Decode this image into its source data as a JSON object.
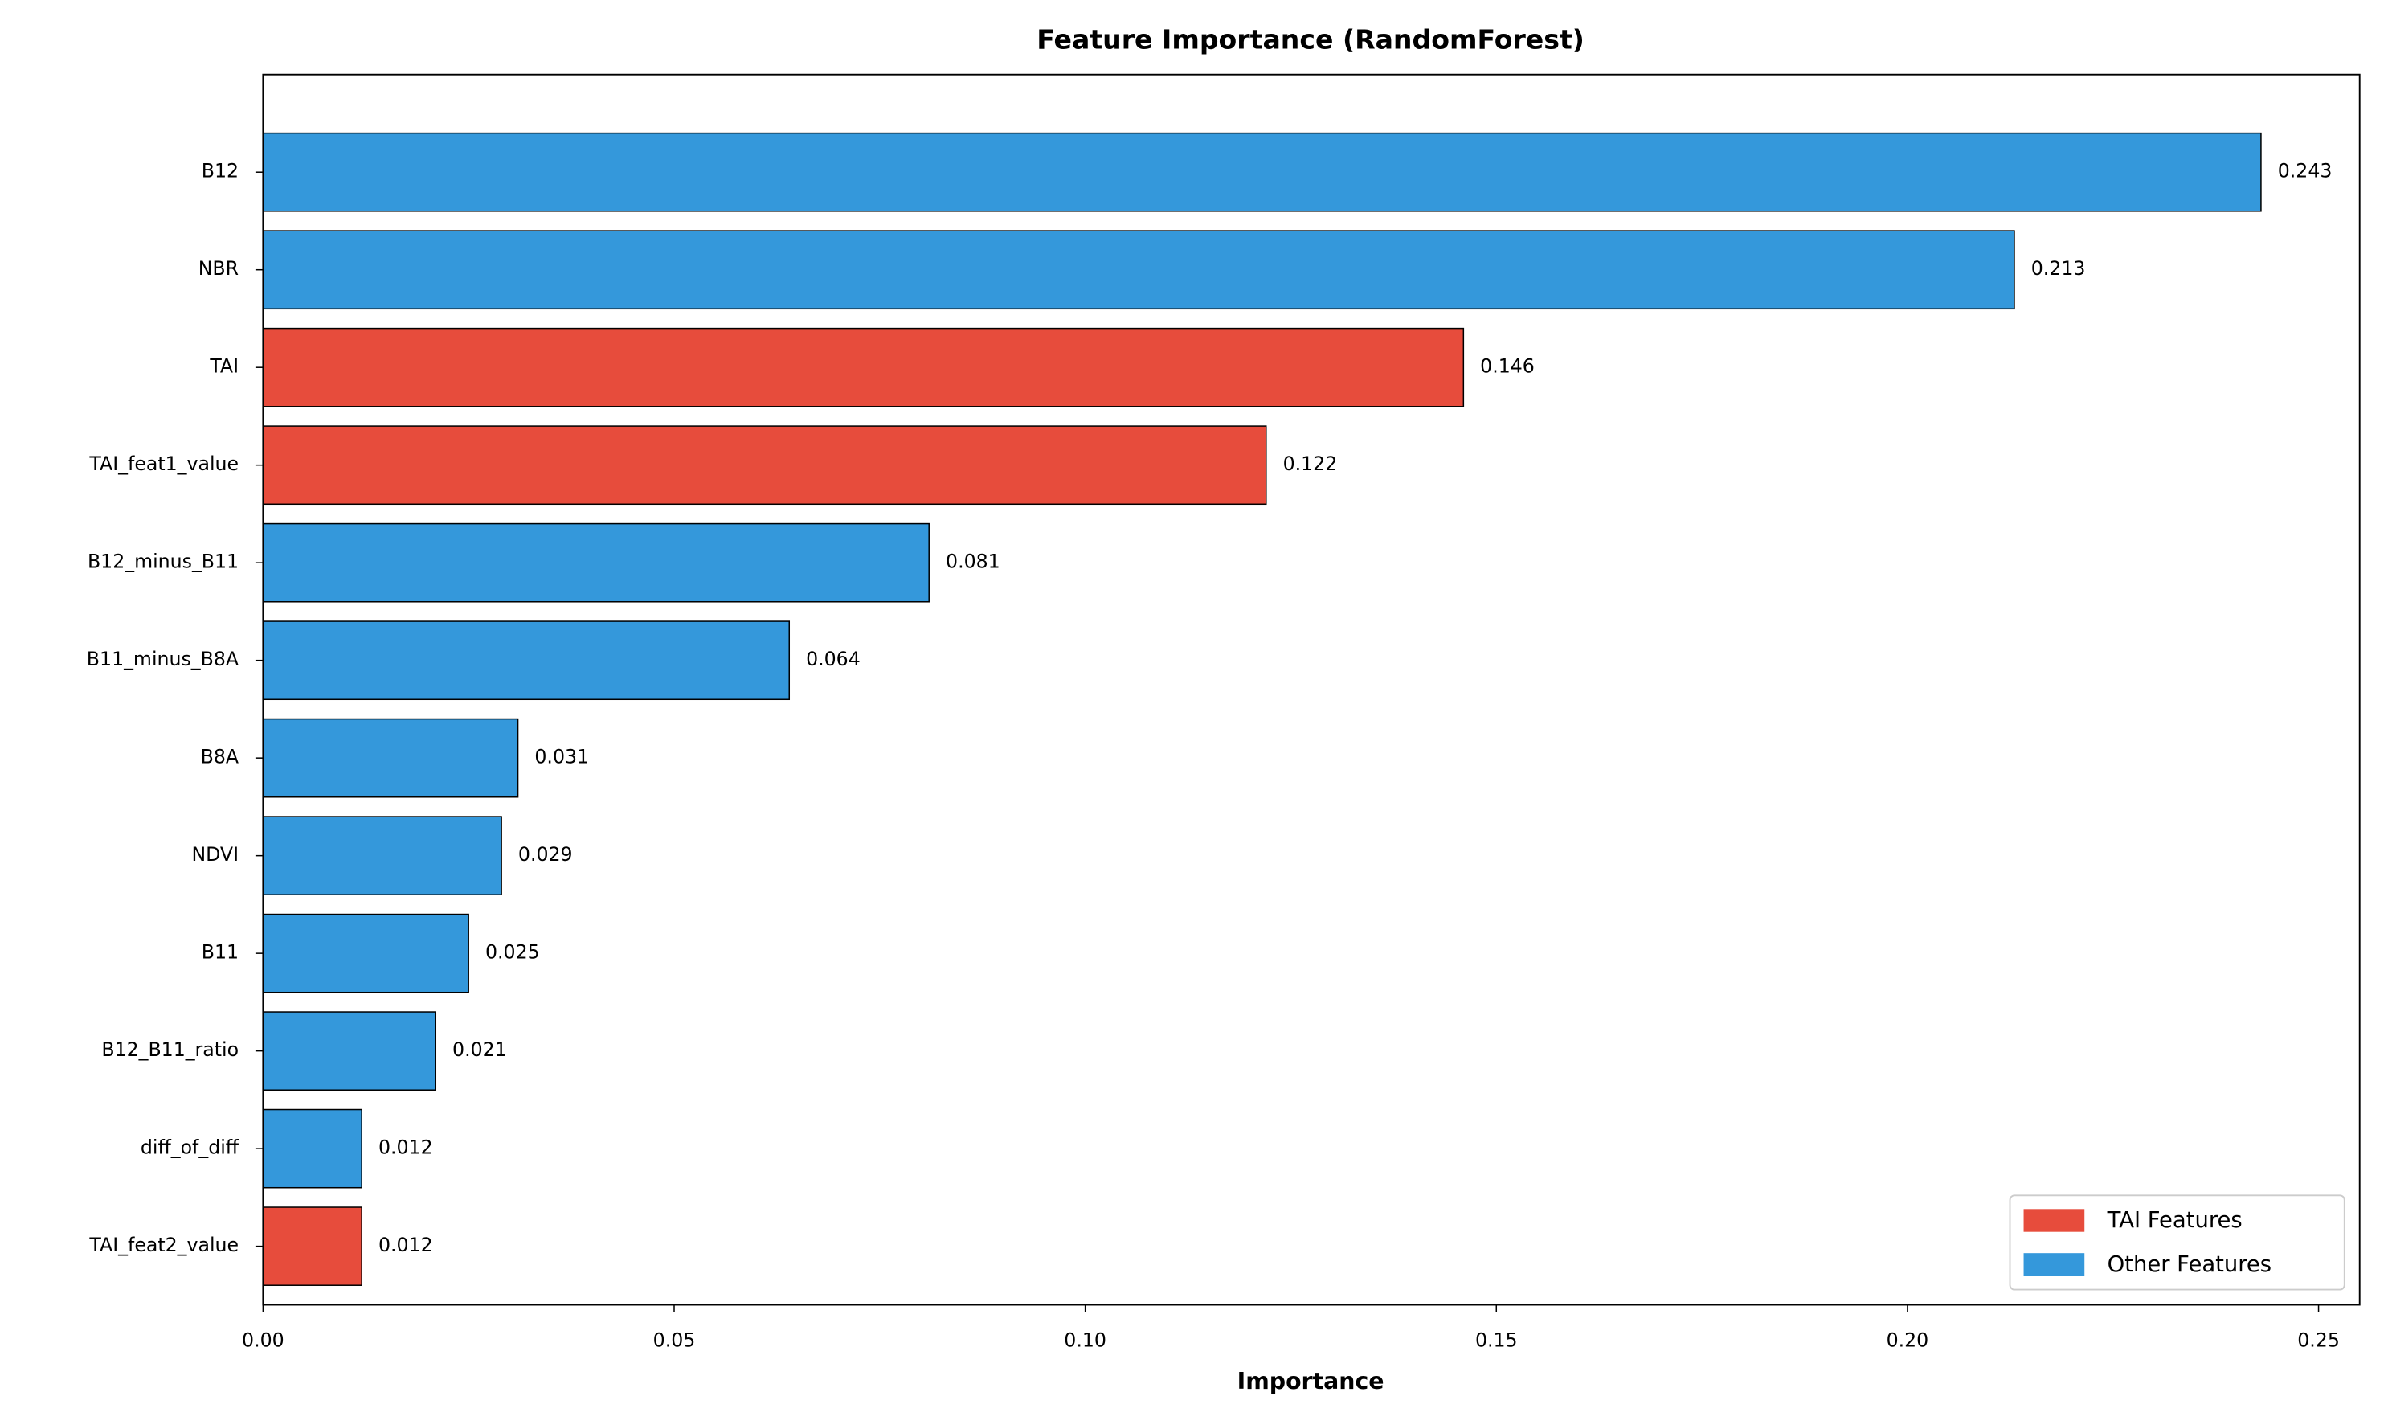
{
  "chart_data": {
    "type": "barh",
    "title": "Feature Importance (RandomForest)",
    "x_label": "Importance",
    "categories": [
      "B12",
      "NBR",
      "TAI",
      "TAI_feat1_value",
      "B12_minus_B11",
      "B11_minus_B8A",
      "B8A",
      "NDVI",
      "B11",
      "B12_B11_ratio",
      "diff_of_diff",
      "TAI_feat2_value"
    ],
    "values": [
      0.243,
      0.213,
      0.146,
      0.122,
      0.081,
      0.064,
      0.031,
      0.029,
      0.025,
      0.021,
      0.012,
      0.012
    ],
    "colors": [
      "#3498db",
      "#3498db",
      "#e74c3c",
      "#e74c3c",
      "#3498db",
      "#3498db",
      "#3498db",
      "#3498db",
      "#3498db",
      "#3498db",
      "#3498db",
      "#e74c3c"
    ],
    "legend": [
      {
        "name": "TAI Features",
        "color": "#e74c3c"
      },
      {
        "name": "Other Features",
        "color": "#3498db"
      }
    ],
    "legend_position": "lower right",
    "xlim": [
      0,
      0.255
    ],
    "xticks": [
      {
        "value": 0,
        "label": "0.00"
      },
      0.05,
      {
        "value": 0.1,
        "label": "0.10"
      },
      0.15,
      {
        "value": 0.2,
        "label": "0.20"
      },
      0.25
    ],
    "grid": false
  }
}
